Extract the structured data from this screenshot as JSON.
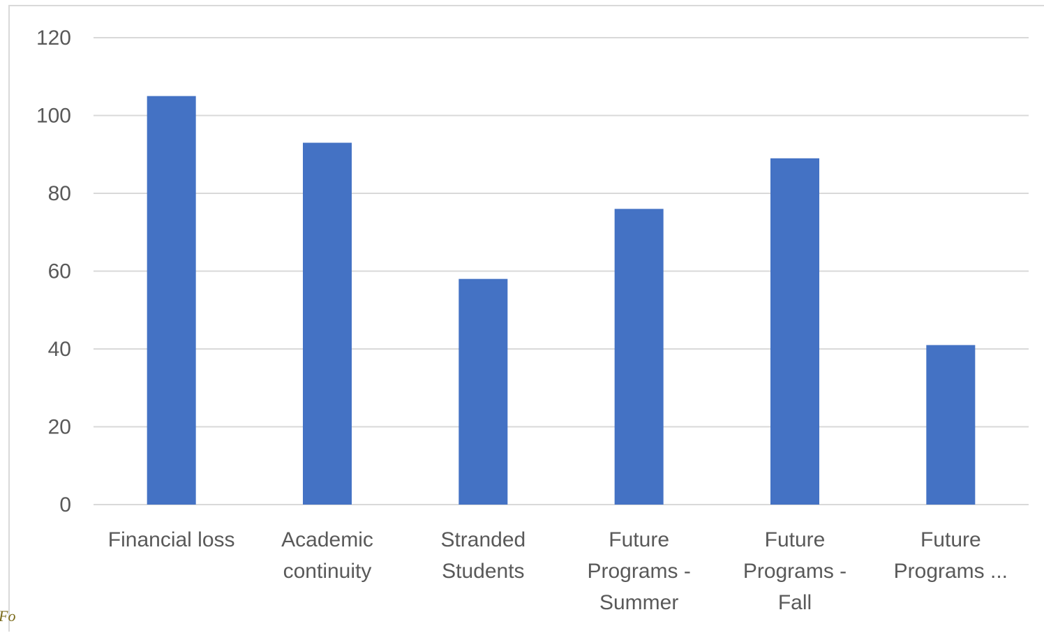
{
  "chart_data": {
    "type": "bar",
    "title": "",
    "xlabel": "",
    "ylabel": "",
    "categories": [
      [
        "Financial loss"
      ],
      [
        "Academic",
        "continuity"
      ],
      [
        "Stranded",
        "Students"
      ],
      [
        "Future",
        "Programs -",
        "Summer"
      ],
      [
        "Future",
        "Programs -",
        "Fall"
      ],
      [
        "Future",
        "Programs ..."
      ]
    ],
    "values": [
      105,
      93,
      58,
      76,
      89,
      41
    ],
    "ylim": [
      0,
      120
    ],
    "yticks": [
      0,
      20,
      40,
      60,
      80,
      100,
      120
    ],
    "grid": true,
    "legend": "none",
    "colors": {
      "bar": "#4472c4",
      "grid": "#d9d9d9",
      "text": "#595959"
    }
  },
  "page": {
    "corner_fragment": "Fo"
  }
}
